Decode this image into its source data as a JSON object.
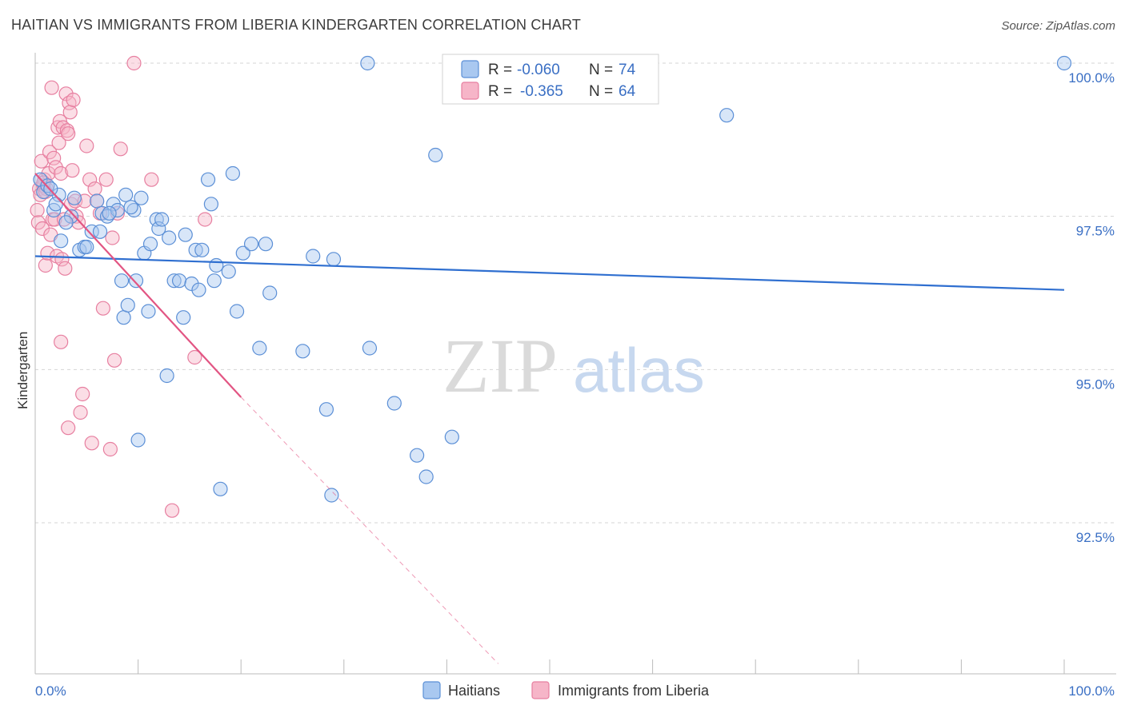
{
  "title": "HAITIAN VS IMMIGRANTS FROM LIBERIA KINDERGARTEN CORRELATION CHART",
  "source": "Source: ZipAtlas.com",
  "colors": {
    "blue_fill": "#a9c8f0",
    "blue_stroke": "#5b8fd6",
    "blue_line": "#2f6fd0",
    "pink_fill": "#f6b5c8",
    "pink_stroke": "#e77fa0",
    "pink_line": "#e25583",
    "grid": "#d5d5d5",
    "axis_label": "#3a6fc4"
  },
  "legend": {
    "rows": [
      {
        "r_label": "R =",
        "r_value": "-0.060",
        "n_label": "N =",
        "n_value": "74"
      },
      {
        "r_label": "R =",
        "r_value": "-0.365",
        "n_label": "N =",
        "n_value": "64"
      }
    ]
  },
  "watermark": {
    "zip": "ZIP",
    "atlas": "atlas"
  },
  "chart_data": {
    "type": "scatter",
    "title": "HAITIAN VS IMMIGRANTS FROM LIBERIA KINDERGARTEN CORRELATION CHART",
    "xlabel": "",
    "ylabel": "Kindergarten",
    "xlim": [
      0,
      100
    ],
    "ylim": [
      90.2,
      100.5
    ],
    "x_tick_labels": [
      "0.0%",
      "100.0%"
    ],
    "y_ticks": [
      92.5,
      95.0,
      97.5,
      100.0
    ],
    "y_tick_labels": [
      "92.5%",
      "95.0%",
      "97.5%",
      "100.0%"
    ],
    "grid": true,
    "series": [
      {
        "name": "Haitians",
        "r": -0.06,
        "n": 74,
        "trend": {
          "x": [
            0,
            100
          ],
          "y": [
            96.85,
            96.3
          ]
        },
        "points": [
          [
            0.5,
            98.1
          ],
          [
            0.8,
            97.9
          ],
          [
            1.2,
            98.0
          ],
          [
            1.8,
            97.6
          ],
          [
            2.3,
            97.85
          ],
          [
            2.5,
            97.1
          ],
          [
            3.5,
            97.5
          ],
          [
            3.8,
            97.8
          ],
          [
            4.3,
            96.95
          ],
          [
            4.8,
            97.0
          ],
          [
            5.5,
            97.25
          ],
          [
            6.0,
            97.75
          ],
          [
            6.3,
            97.25
          ],
          [
            6.5,
            97.55
          ],
          [
            7.0,
            97.5
          ],
          [
            7.6,
            97.7
          ],
          [
            8.0,
            97.6
          ],
          [
            8.4,
            96.45
          ],
          [
            8.6,
            95.85
          ],
          [
            8.8,
            97.85
          ],
          [
            9.0,
            96.05
          ],
          [
            9.6,
            97.6
          ],
          [
            9.8,
            96.45
          ],
          [
            10.0,
            93.85
          ],
          [
            10.3,
            97.8
          ],
          [
            10.6,
            96.9
          ],
          [
            11.0,
            95.95
          ],
          [
            11.2,
            97.05
          ],
          [
            11.8,
            97.45
          ],
          [
            12.0,
            97.3
          ],
          [
            12.3,
            97.45
          ],
          [
            12.8,
            94.9
          ],
          [
            13.0,
            97.15
          ],
          [
            13.5,
            96.45
          ],
          [
            14.0,
            96.45
          ],
          [
            14.4,
            95.85
          ],
          [
            14.6,
            97.2
          ],
          [
            15.2,
            96.4
          ],
          [
            15.6,
            96.95
          ],
          [
            15.9,
            96.3
          ],
          [
            16.2,
            96.95
          ],
          [
            16.8,
            98.1
          ],
          [
            17.1,
            97.7
          ],
          [
            17.4,
            96.45
          ],
          [
            17.6,
            96.7
          ],
          [
            18.0,
            93.05
          ],
          [
            18.8,
            96.6
          ],
          [
            19.2,
            98.2
          ],
          [
            19.6,
            95.95
          ],
          [
            20.2,
            96.9
          ],
          [
            21.0,
            97.05
          ],
          [
            21.8,
            95.35
          ],
          [
            22.4,
            97.05
          ],
          [
            22.8,
            96.25
          ],
          [
            26.0,
            95.3
          ],
          [
            27.0,
            96.85
          ],
          [
            28.3,
            94.35
          ],
          [
            28.8,
            92.95
          ],
          [
            29.0,
            96.8
          ],
          [
            32.5,
            95.35
          ],
          [
            32.3,
            100.0
          ],
          [
            34.9,
            94.45
          ],
          [
            37.1,
            93.6
          ],
          [
            38.0,
            93.25
          ],
          [
            38.9,
            98.5
          ],
          [
            40.5,
            93.9
          ],
          [
            67.2,
            99.15
          ],
          [
            100.0,
            100.0
          ],
          [
            1.5,
            97.95
          ],
          [
            2.0,
            97.7
          ],
          [
            3.0,
            97.4
          ],
          [
            5.0,
            97.0
          ],
          [
            7.2,
            97.55
          ],
          [
            9.3,
            97.65
          ]
        ]
      },
      {
        "name": "Immigrants from Liberia",
        "r": -0.365,
        "n": 64,
        "trend": {
          "x": [
            0,
            20
          ],
          "y": [
            98.2,
            94.55
          ]
        },
        "trend_dashed": {
          "x": [
            20,
            45
          ],
          "y": [
            94.55,
            90.2
          ]
        },
        "points": [
          [
            0.2,
            97.6
          ],
          [
            0.3,
            97.4
          ],
          [
            0.4,
            97.95
          ],
          [
            0.5,
            97.85
          ],
          [
            0.6,
            98.4
          ],
          [
            0.7,
            97.3
          ],
          [
            0.8,
            98.0
          ],
          [
            0.9,
            98.1
          ],
          [
            1.0,
            96.7
          ],
          [
            1.1,
            97.95
          ],
          [
            1.2,
            96.9
          ],
          [
            1.3,
            98.2
          ],
          [
            1.4,
            98.55
          ],
          [
            1.5,
            97.2
          ],
          [
            1.6,
            99.6
          ],
          [
            1.7,
            97.45
          ],
          [
            1.8,
            98.45
          ],
          [
            1.9,
            97.45
          ],
          [
            2.0,
            98.3
          ],
          [
            2.1,
            96.85
          ],
          [
            2.2,
            98.95
          ],
          [
            2.3,
            98.7
          ],
          [
            2.4,
            99.05
          ],
          [
            2.5,
            98.2
          ],
          [
            2.6,
            96.8
          ],
          [
            2.7,
            98.95
          ],
          [
            2.8,
            97.45
          ],
          [
            2.9,
            96.65
          ],
          [
            3.0,
            99.5
          ],
          [
            3.1,
            98.9
          ],
          [
            3.2,
            98.85
          ],
          [
            3.3,
            99.35
          ],
          [
            3.4,
            99.2
          ],
          [
            3.5,
            97.7
          ],
          [
            3.6,
            98.25
          ],
          [
            3.7,
            99.4
          ],
          [
            3.9,
            97.75
          ],
          [
            4.0,
            97.5
          ],
          [
            4.2,
            97.4
          ],
          [
            4.4,
            94.3
          ],
          [
            4.6,
            94.6
          ],
          [
            4.8,
            97.75
          ],
          [
            5.0,
            98.65
          ],
          [
            5.3,
            98.1
          ],
          [
            5.5,
            93.8
          ],
          [
            5.8,
            97.95
          ],
          [
            6.0,
            97.75
          ],
          [
            6.3,
            97.55
          ],
          [
            6.6,
            96.0
          ],
          [
            6.9,
            98.1
          ],
          [
            7.3,
            93.7
          ],
          [
            7.5,
            97.15
          ],
          [
            7.7,
            95.15
          ],
          [
            8.0,
            97.55
          ],
          [
            8.3,
            98.6
          ],
          [
            9.6,
            100.0
          ],
          [
            11.3,
            98.1
          ],
          [
            13.3,
            92.7
          ],
          [
            15.5,
            95.2
          ],
          [
            16.5,
            97.45
          ],
          [
            2.5,
            95.45
          ],
          [
            3.2,
            94.05
          ],
          [
            1.0,
            97.9
          ],
          [
            0.8,
            98.05
          ]
        ]
      }
    ]
  },
  "bottom_legend": [
    {
      "label": "Haitians"
    },
    {
      "label": "Immigrants from Liberia"
    }
  ]
}
